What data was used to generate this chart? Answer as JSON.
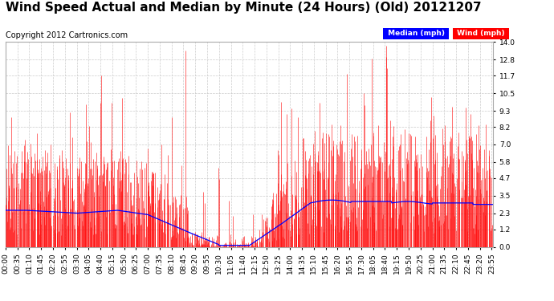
{
  "title": "Wind Speed Actual and Median by Minute (24 Hours) (Old) 20121207",
  "copyright": "Copyright 2012 Cartronics.com",
  "yticks": [
    0.0,
    1.2,
    2.3,
    3.5,
    4.7,
    5.8,
    7.0,
    8.2,
    9.3,
    10.5,
    11.7,
    12.8,
    14.0
  ],
  "ylim": [
    0.0,
    14.0
  ],
  "xlim": [
    0,
    1439
  ],
  "bg_color": "#ffffff",
  "plot_bg_color": "#ffffff",
  "grid_color": "#cccccc",
  "wind_color": "#ff0000",
  "median_color": "#0000ff",
  "title_fontsize": 11,
  "copyright_fontsize": 7,
  "tick_fontsize": 6.5,
  "minutes_per_day": 1440,
  "xtick_interval": 35,
  "seed": 42
}
